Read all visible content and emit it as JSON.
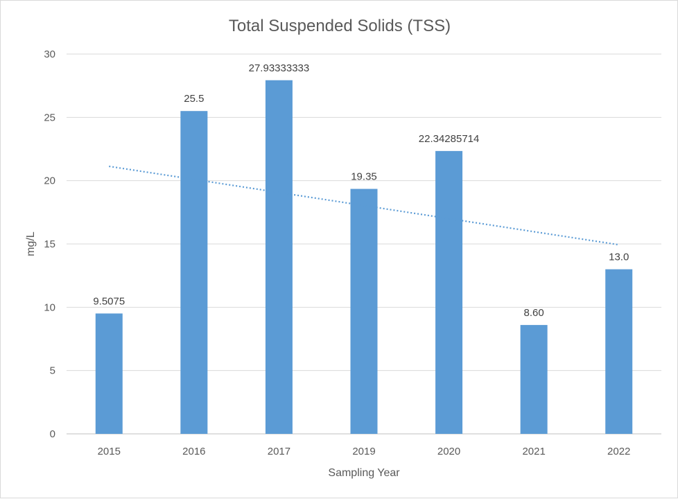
{
  "chart_data": {
    "type": "bar",
    "title": "Total Suspended Solids (TSS)",
    "xlabel": "Sampling Year",
    "ylabel": "mg/L",
    "categories": [
      "2015",
      "2016",
      "2017",
      "2019",
      "2020",
      "2021",
      "2022"
    ],
    "values": [
      9.5075,
      25.5,
      27.93333333,
      19.35,
      22.34285714,
      8.6,
      13.0
    ],
    "data_labels": [
      "9.5075",
      "25.5",
      "27.93333333",
      "19.35",
      "22.34285714",
      "8.60",
      "13.0"
    ],
    "ylim": [
      0,
      30
    ],
    "yticks": [
      0,
      5,
      10,
      15,
      20,
      25,
      30
    ],
    "grid": true,
    "legend": "none",
    "trendline": {
      "type": "linear",
      "style": "dotted"
    },
    "colors": {
      "bar": "#5b9bd5",
      "trendline": "#5b9bd5",
      "grid": "#d9d9d9",
      "text": "#595959"
    }
  }
}
